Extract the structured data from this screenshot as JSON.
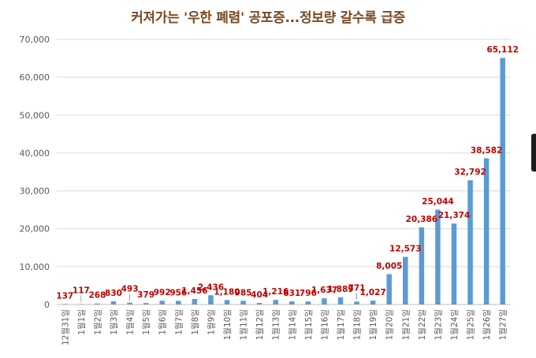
{
  "chart_data": {
    "type": "bar",
    "title": "커져가는 '우한 폐렴' 공포증...정보량 갈수록 급증",
    "xlabel": "",
    "ylabel": "",
    "ylim": [
      0,
      70000
    ],
    "yticks": [
      0,
      10000,
      20000,
      30000,
      40000,
      50000,
      60000,
      70000
    ],
    "ytick_labels": [
      "0",
      "10,000",
      "20,000",
      "30,000",
      "40,000",
      "50,000",
      "60,000",
      "70,000"
    ],
    "grid": true,
    "legend": "none",
    "bar_color": "#5b9bd5",
    "label_color": "#c00000",
    "categories": [
      "12월31일",
      "1월1일",
      "1월2일",
      "1월3일",
      "1월4일",
      "1월5일",
      "1월6일",
      "1월7일",
      "1월8일",
      "1월9일",
      "1월10일",
      "1월11일",
      "1월12일",
      "1월13일",
      "1월14일",
      "1월15일",
      "1월16일",
      "1월17일",
      "1월18일",
      "1월19일",
      "1월20일",
      "1월21일",
      "1월22일",
      "1월23일",
      "1월24일",
      "1월25일",
      "1월26일",
      "1월27일"
    ],
    "values": [
      137,
      117,
      268,
      830,
      493,
      379,
      992,
      956,
      1456,
      2436,
      1180,
      985,
      404,
      1216,
      831,
      796,
      1637,
      1889,
      771,
      1027,
      8005,
      12573,
      20386,
      25044,
      21374,
      32792,
      38582,
      65112
    ],
    "value_labels": [
      "137",
      "117",
      "268",
      "830",
      "493",
      "379",
      "992",
      "956",
      "1,456",
      "2,436",
      "1,180",
      "985",
      "404",
      "1,216",
      "831",
      "796",
      "1,637",
      "1,889",
      "771",
      "1,027",
      "8,005",
      "12,573",
      "20,386",
      "25,044",
      "21,374",
      "32,792",
      "38,582",
      "65,112"
    ]
  }
}
